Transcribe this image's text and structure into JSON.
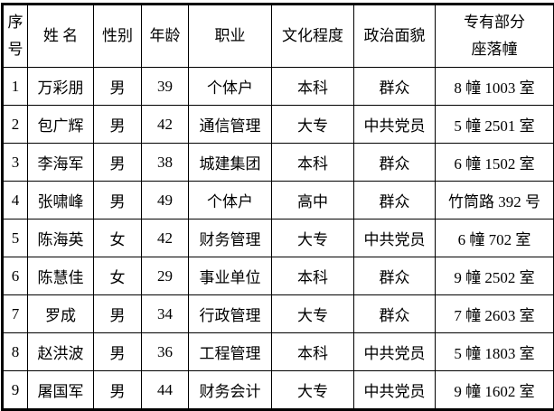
{
  "table": {
    "headers": {
      "index": [
        "序",
        "号"
      ],
      "name": "姓 名",
      "gender": "性别",
      "age": "年龄",
      "occupation": "职业",
      "education": "文化程度",
      "political": "政治面貌",
      "location": [
        "专有部分",
        "座落幢"
      ]
    },
    "rows": [
      [
        "1",
        "万彩朋",
        "男",
        "39",
        "个体户",
        "本科",
        "群众",
        "8 幢 1003 室"
      ],
      [
        "2",
        "包广辉",
        "男",
        "42",
        "通信管理",
        "大专",
        "中共党员",
        "5 幢 2501 室"
      ],
      [
        "3",
        "李海军",
        "男",
        "38",
        "城建集团",
        "本科",
        "群众",
        "6 幢 1502 室"
      ],
      [
        "4",
        "张啸峰",
        "男",
        "49",
        "个体户",
        "高中",
        "群众",
        "竹筒路 392 号"
      ],
      [
        "5",
        "陈海英",
        "女",
        "42",
        "财务管理",
        "大专",
        "中共党员",
        "6 幢 702 室"
      ],
      [
        "6",
        "陈慧佳",
        "女",
        "29",
        "事业单位",
        "本科",
        "群众",
        "9 幢 2502 室"
      ],
      [
        "7",
        "罗成",
        "男",
        "34",
        "行政管理",
        "大专",
        "群众",
        "7 幢 2603 室"
      ],
      [
        "8",
        "赵洪波",
        "男",
        "36",
        "工程管理",
        "本科",
        "中共党员",
        "5 幢 1803 室"
      ],
      [
        "9",
        "屠国军",
        "男",
        "44",
        "财务会计",
        "大专",
        "中共党员",
        "9 幢 1602 室"
      ]
    ]
  }
}
